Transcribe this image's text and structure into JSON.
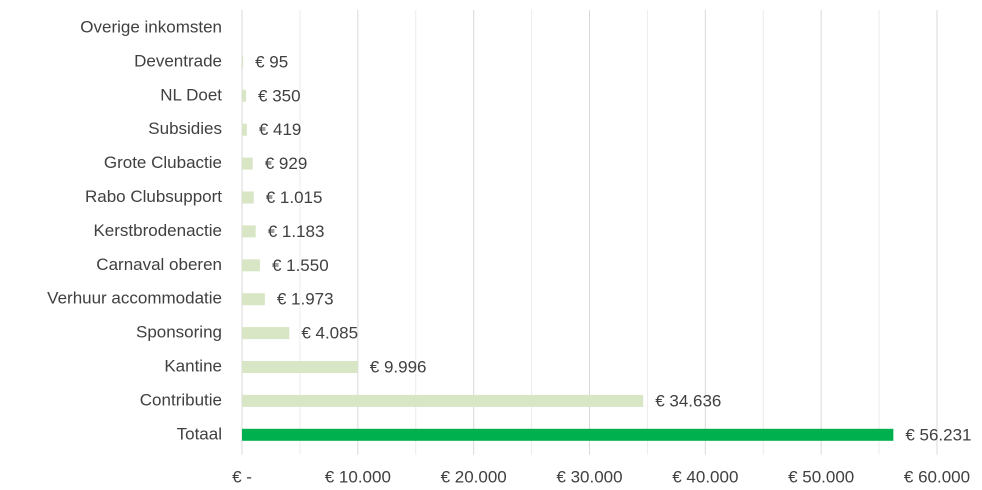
{
  "chart_data": {
    "type": "hbar",
    "categories": [
      "Overige inkomsten",
      "Deventrade",
      "NL Doet",
      "Subsidies",
      "Grote Clubactie",
      "Rabo Clubsupport",
      "Kerstbrodenactie",
      "Carnaval oberen",
      "Verhuur accommodatie",
      "Sponsoring",
      "Kantine",
      "Contributie",
      "Totaal"
    ],
    "values": [
      null,
      95,
      350,
      419,
      929,
      1015,
      1183,
      1550,
      1973,
      4085,
      9996,
      34636,
      56231
    ],
    "value_labels": [
      null,
      "€ 95",
      "€ 350",
      "€ 419",
      "€ 929",
      "€ 1.015",
      "€ 1.183",
      "€ 1.550",
      "€ 1.973",
      "€ 4.085",
      "€ 9.996",
      "€ 34.636",
      "€ 56.231"
    ],
    "colors": [
      "#d8e6c5",
      "#d8e6c5",
      "#d8e6c5",
      "#d8e6c5",
      "#d8e6c5",
      "#d8e6c5",
      "#d8e6c5",
      "#d8e6c5",
      "#d8e6c5",
      "#d8e6c5",
      "#d8e6c5",
      "#d8e6c5",
      "#00b04f"
    ],
    "xlim": [
      0,
      60000
    ],
    "xticks": [
      {
        "value": 0,
        "label": "€ -"
      },
      {
        "value": 10000,
        "label": "€ 10.000"
      },
      {
        "value": 20000,
        "label": "€ 20.000"
      },
      {
        "value": 30000,
        "label": "€ 30.000"
      },
      {
        "value": 40000,
        "label": "€ 40.000"
      },
      {
        "value": 50000,
        "label": "€ 50.000"
      },
      {
        "value": 60000,
        "label": "€ 60.000"
      }
    ],
    "minor_xticks": [
      5000,
      15000,
      25000,
      35000,
      45000,
      55000
    ],
    "grid": true
  }
}
